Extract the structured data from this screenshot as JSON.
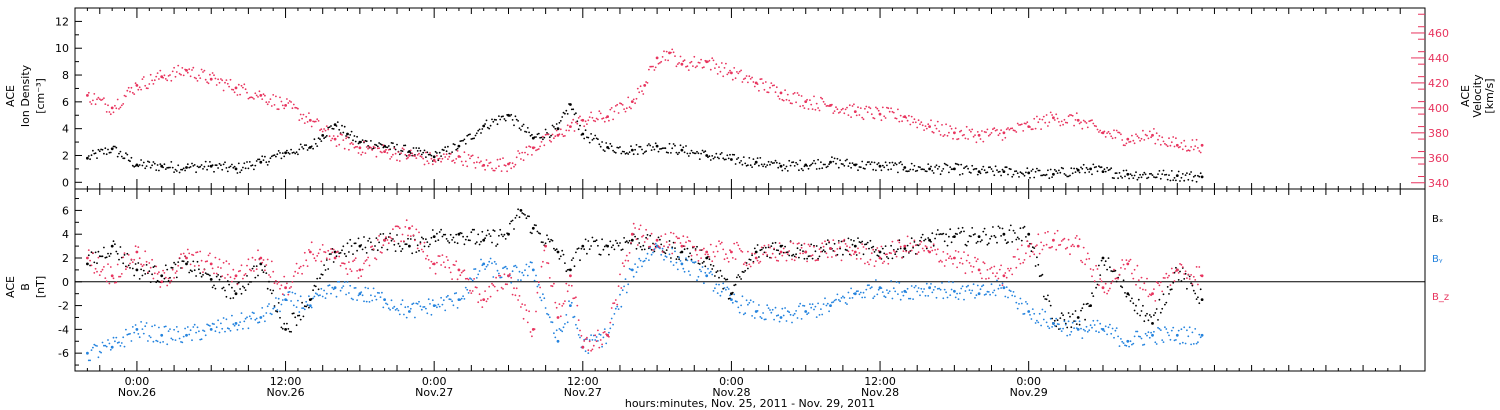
{
  "chart_data": [
    {
      "type": "scatter",
      "panel": "top",
      "ylabel_lines": [
        "ACE",
        "Ion Density",
        "[cm⁻³]"
      ],
      "y2label_lines": [
        "ACE",
        "Velocity",
        "[km/s]"
      ],
      "ylim": [
        -0.5,
        13
      ],
      "yticks": [
        "0",
        "2",
        "4",
        "6",
        "8",
        "10",
        "12"
      ],
      "y2lim": [
        335,
        480
      ],
      "y2ticks": [
        "340",
        "360",
        "380",
        "400",
        "420",
        "440",
        "460"
      ],
      "series": [
        {
          "axis": "left",
          "color": "#000000",
          "x": [
            -4,
            -2,
            0,
            2,
            4,
            6,
            8,
            10,
            12,
            14,
            15,
            16,
            17,
            18,
            20,
            22,
            24,
            26,
            28,
            30,
            32,
            34,
            35,
            36,
            38,
            40,
            42,
            44,
            46,
            48,
            50,
            52,
            54,
            56,
            58,
            60,
            62,
            64,
            66,
            68,
            70,
            72,
            74,
            76,
            77,
            78,
            80,
            84,
            86
          ],
          "values": [
            1.8,
            2.5,
            1.3,
            1.2,
            1.1,
            1.2,
            1.0,
            1.5,
            2.2,
            2.6,
            3.5,
            4.3,
            3.6,
            3.0,
            2.7,
            2.3,
            1.9,
            2.7,
            4.2,
            5.0,
            3.3,
            4.0,
            5.8,
            3.6,
            2.6,
            2.4,
            2.7,
            2.4,
            2.0,
            1.7,
            1.5,
            1.2,
            1.3,
            1.5,
            1.3,
            1.2,
            1.1,
            1.0,
            1.0,
            0.8,
            0.8,
            0.7,
            0.6,
            0.9,
            1.0,
            0.8,
            0.6,
            0.5,
            0.4
          ]
        },
        {
          "axis": "right",
          "color": "#e8345e",
          "x": [
            -4,
            -2,
            0,
            2,
            4,
            6,
            8,
            10,
            12,
            14,
            16,
            18,
            20,
            22,
            24,
            26,
            28,
            30,
            32,
            34,
            35,
            36,
            38,
            40,
            41,
            42,
            43,
            44,
            46,
            48,
            50,
            52,
            54,
            56,
            58,
            60,
            62,
            64,
            66,
            68,
            70,
            72,
            74,
            76,
            78,
            80,
            82,
            84,
            86
          ],
          "values": [
            410,
            400,
            418,
            425,
            430,
            423,
            416,
            410,
            402,
            390,
            375,
            368,
            365,
            362,
            358,
            361,
            354,
            355,
            368,
            378,
            385,
            390,
            393,
            405,
            418,
            440,
            444,
            435,
            437,
            428,
            420,
            412,
            405,
            402,
            397,
            395,
            393,
            385,
            380,
            378,
            380,
            385,
            392,
            390,
            380,
            375,
            378,
            370,
            370
          ]
        }
      ]
    },
    {
      "type": "scatter",
      "panel": "bottom",
      "ylabel_lines": [
        "ACE",
        "B",
        "[nT]"
      ],
      "ylim": [
        -7.5,
        7.8
      ],
      "yticks": [
        "-6",
        "-4",
        "-2",
        "0",
        "2",
        "4",
        "6"
      ],
      "series": [
        {
          "name": "Bₓ",
          "color": "#000000",
          "x": [
            -4,
            -2,
            0,
            2,
            4,
            6,
            8,
            10,
            12,
            14,
            16,
            18,
            20,
            22,
            24,
            26,
            28,
            30,
            31,
            32,
            34,
            35,
            36,
            38,
            40,
            42,
            44,
            46,
            48,
            50,
            52,
            54,
            56,
            58,
            60,
            62,
            64,
            66,
            68,
            70,
            72,
            74,
            76,
            77,
            78,
            80,
            82,
            84,
            86
          ],
          "values": [
            1.5,
            3.0,
            1.0,
            0.5,
            1.5,
            0.2,
            -1.0,
            1.5,
            -4.0,
            -1.5,
            2.5,
            3.0,
            3.5,
            3.0,
            3.8,
            4.0,
            3.5,
            4.0,
            6.0,
            4.5,
            2.5,
            1.0,
            3.0,
            3.0,
            3.5,
            3.0,
            2.5,
            2.0,
            -1.0,
            2.5,
            3.0,
            2.5,
            2.8,
            3.0,
            2.5,
            2.8,
            3.5,
            3.8,
            3.8,
            4.0,
            4.0,
            -3.5,
            -3.0,
            -2.0,
            2.0,
            -1.0,
            -3.5,
            1.0,
            -1.5
          ]
        },
        {
          "name": "Bᵧ",
          "color": "#2483de",
          "x": [
            -4,
            -2,
            0,
            2,
            4,
            6,
            8,
            10,
            12,
            14,
            16,
            18,
            20,
            22,
            24,
            26,
            28,
            30,
            32,
            34,
            35,
            36,
            38,
            40,
            42,
            44,
            46,
            48,
            50,
            52,
            54,
            56,
            58,
            60,
            62,
            64,
            66,
            68,
            70,
            72,
            74,
            76,
            78,
            80,
            82,
            84,
            86
          ],
          "values": [
            -6.0,
            -5.5,
            -4.0,
            -4.5,
            -4.5,
            -4.0,
            -3.5,
            -3.0,
            -1.5,
            -2.0,
            -0.5,
            -1.0,
            -1.5,
            -2.5,
            -2.0,
            -1.5,
            1.5,
            0.5,
            1.0,
            -5.0,
            -2.0,
            -5.5,
            -4.5,
            1.0,
            3.0,
            1.5,
            0.5,
            -1.5,
            -2.5,
            -3.0,
            -2.5,
            -2.0,
            -1.0,
            -0.5,
            -0.8,
            -0.5,
            -0.8,
            -1.0,
            -0.5,
            -2.5,
            -3.5,
            -4.0,
            -4.0,
            -5.0,
            -4.5,
            -4.5,
            -4.5
          ]
        },
        {
          "name": "B_z",
          "color": "#e8345e",
          "x": [
            -4,
            -2,
            0,
            2,
            4,
            6,
            8,
            10,
            12,
            14,
            16,
            18,
            20,
            22,
            24,
            26,
            28,
            30,
            32,
            33,
            34,
            35,
            36,
            38,
            40,
            42,
            44,
            46,
            48,
            50,
            52,
            54,
            56,
            58,
            60,
            62,
            64,
            66,
            68,
            70,
            72,
            74,
            76,
            78,
            80,
            82,
            84,
            86
          ],
          "values": [
            2.0,
            0.5,
            2.5,
            0.0,
            2.0,
            1.5,
            0.5,
            2.0,
            -0.5,
            2.5,
            2.0,
            1.0,
            3.5,
            4.5,
            1.5,
            1.0,
            -1.5,
            0.5,
            -4.0,
            3.0,
            -3.0,
            0.5,
            -5.5,
            -4.5,
            4.0,
            3.5,
            3.0,
            2.5,
            2.5,
            2.0,
            2.5,
            2.5,
            2.8,
            2.5,
            2.0,
            3.0,
            2.5,
            2.0,
            1.0,
            0.5,
            3.0,
            3.5,
            3.0,
            -0.5,
            1.5,
            -1.0,
            1.0,
            0.5
          ]
        }
      ]
    }
  ],
  "xaxis": {
    "xlim": [
      -5,
      104
    ],
    "ticks": [
      {
        "t": 0,
        "time": "0:00",
        "date": "Nov.26"
      },
      {
        "t": 12,
        "time": "12:00",
        "date": "Nov.26"
      },
      {
        "t": 24,
        "time": "0:00",
        "date": "Nov.27"
      },
      {
        "t": 36,
        "time": "12:00",
        "date": "Nov.27"
      },
      {
        "t": 48,
        "time": "0:00",
        "date": "Nov.28"
      },
      {
        "t": 60,
        "time": "12:00",
        "date": "Nov.28"
      },
      {
        "t": 72,
        "time": "0:00",
        "date": "Nov.29"
      }
    ],
    "title": "hours:minutes, Nov. 25, 2011 - Nov. 29, 2011"
  },
  "legend": {
    "placement": "right",
    "items": [
      {
        "text": "Bₓ",
        "color": "#000000"
      },
      {
        "text": "Bᵧ",
        "color": "#2483de"
      },
      {
        "text": "B_z",
        "color": "#e8345e"
      }
    ]
  },
  "colors": {
    "black": "#000000",
    "red": "#e8345e",
    "blue": "#2483de"
  }
}
